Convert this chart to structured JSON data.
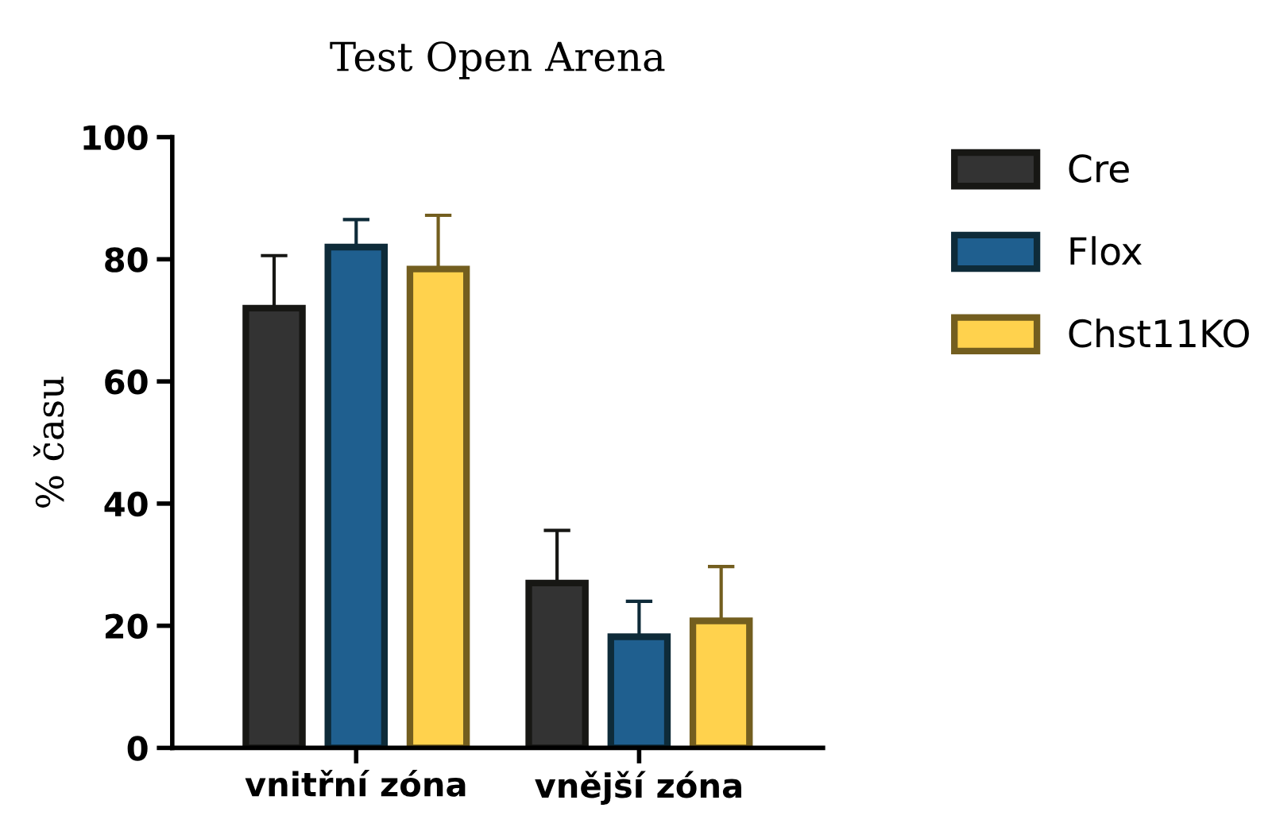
{
  "chart_data": {
    "type": "bar",
    "title": "Test Open Arena",
    "ylabel": "% času",
    "categories": [
      "vnitřní zóna",
      "vnější zóna"
    ],
    "series": [
      {
        "name": "Cre",
        "color": "#333333",
        "values": [
          72,
          27
        ],
        "errors": [
          8.6,
          8.6
        ]
      },
      {
        "name": "Flox",
        "color": "#1f5f8f",
        "values": [
          82,
          18.2
        ],
        "errors": [
          4.5,
          5.8
        ]
      },
      {
        "name": "Chst11KO",
        "color": "#ffd24d",
        "values": [
          78.4,
          20.8
        ],
        "errors": [
          8.8,
          8.9
        ]
      }
    ],
    "ylim": [
      0,
      100
    ],
    "yticks": [
      0,
      20,
      40,
      60,
      80,
      100
    ],
    "grid": false,
    "legend": "right"
  }
}
